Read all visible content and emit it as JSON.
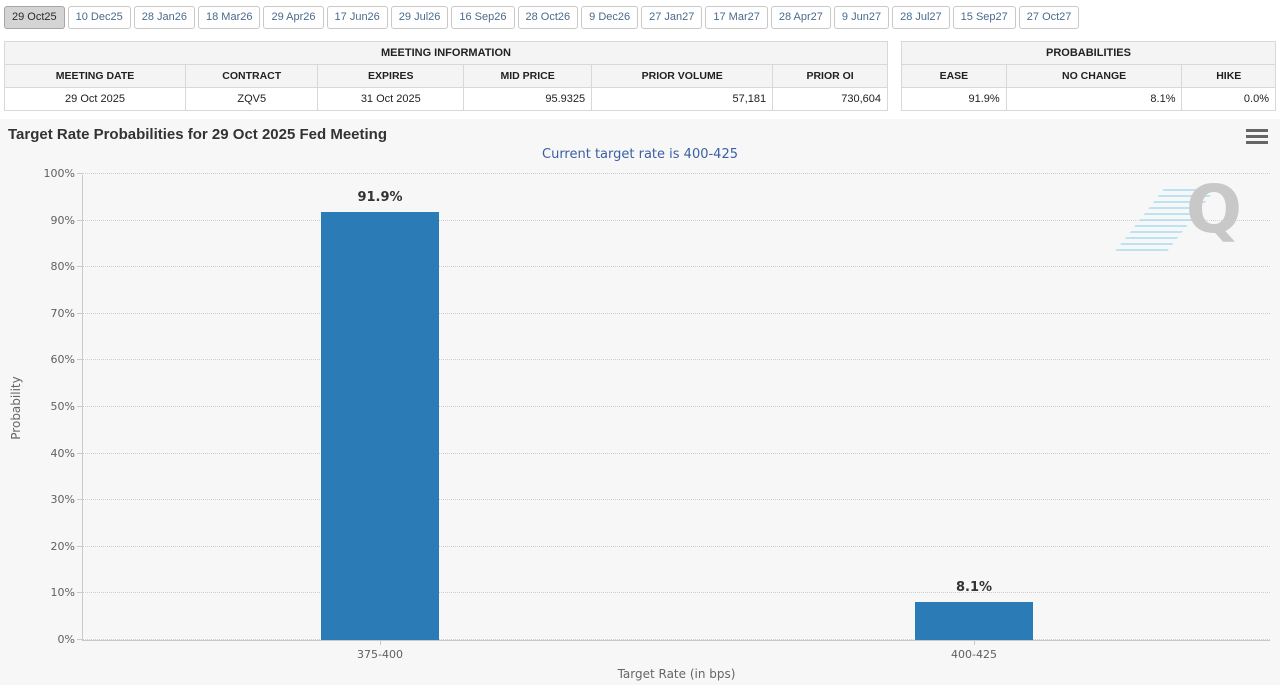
{
  "tabs": {
    "items": [
      {
        "label": "29 Oct25",
        "selected": true
      },
      {
        "label": "10 Dec25",
        "selected": false
      },
      {
        "label": "28 Jan26",
        "selected": false
      },
      {
        "label": "18 Mar26",
        "selected": false
      },
      {
        "label": "29 Apr26",
        "selected": false
      },
      {
        "label": "17 Jun26",
        "selected": false
      },
      {
        "label": "29 Jul26",
        "selected": false
      },
      {
        "label": "16 Sep26",
        "selected": false
      },
      {
        "label": "28 Oct26",
        "selected": false
      },
      {
        "label": "9 Dec26",
        "selected": false
      },
      {
        "label": "27 Jan27",
        "selected": false
      },
      {
        "label": "17 Mar27",
        "selected": false
      },
      {
        "label": "28 Apr27",
        "selected": false
      },
      {
        "label": "9 Jun27",
        "selected": false
      },
      {
        "label": "28 Jul27",
        "selected": false
      },
      {
        "label": "15 Sep27",
        "selected": false
      },
      {
        "label": "27 Oct27",
        "selected": false
      }
    ]
  },
  "meeting_table": {
    "title": "MEETING INFORMATION",
    "columns": [
      "MEETING DATE",
      "CONTRACT",
      "EXPIRES",
      "MID PRICE",
      "PRIOR VOLUME",
      "PRIOR OI"
    ],
    "values": [
      "29 Oct 2025",
      "ZQV5",
      "31 Oct 2025",
      "95.9325",
      "57,181",
      "730,604"
    ]
  },
  "probabilities_table": {
    "title": "PROBABILITIES",
    "columns": [
      "EASE",
      "NO CHANGE",
      "HIKE"
    ],
    "values": [
      "91.9%",
      "8.1%",
      "0.0%"
    ]
  },
  "chart_data": {
    "type": "bar",
    "title": "Target Rate Probabilities for 29 Oct 2025 Fed Meeting",
    "subtitle": "Current target rate is 400-425",
    "categories": [
      "375-400",
      "400-425"
    ],
    "values": [
      91.9,
      8.1
    ],
    "value_labels": [
      "91.9%",
      "8.1%"
    ],
    "xlabel": "Target Rate (in bps)",
    "ylabel": "Probability",
    "ylim": [
      0,
      100
    ],
    "ytick_step": 10,
    "ytick_suffix": "%",
    "grid": "dotted-horizontal",
    "legend": "none",
    "bar_color": "#2b7cb6",
    "watermark_letter": "Q"
  },
  "colors": {
    "accent_blue": "#2b7cb6",
    "subtitle_blue": "#3a5fa5",
    "tab_text": "#4a6b8c",
    "chart_bg": "#f7f7f7"
  },
  "icons": {
    "menu": "hamburger-menu-icon"
  }
}
